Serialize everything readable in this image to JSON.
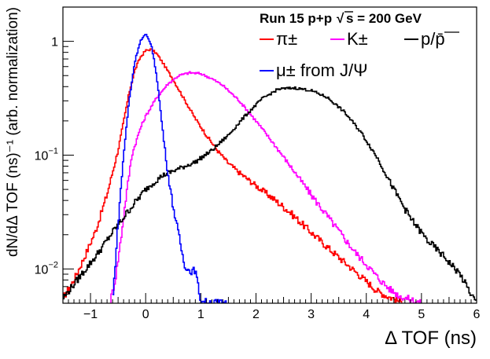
{
  "chart_data": {
    "type": "line",
    "title": "",
    "xlabel": "Δ TOF (ns)",
    "ylabel": "dN/dΔ TOF (ns)⁻¹ (arb. normalization)",
    "xlim": [
      -1.5,
      6
    ],
    "ylim": [
      0.005,
      2.0
    ],
    "yscale": "log",
    "grid": false,
    "x_ticks": [
      -1,
      0,
      1,
      2,
      3,
      4,
      5,
      6
    ],
    "x_tick_labels": [
      "−1",
      "0",
      "1",
      "2",
      "3",
      "4",
      "5",
      "6"
    ],
    "y_ticks": [
      {
        "value": 1,
        "base": "1",
        "exp": ""
      },
      {
        "value": 0.1,
        "base": "10",
        "exp": "−1"
      },
      {
        "value": 0.01,
        "base": "10",
        "exp": "−2"
      }
    ],
    "annotation": {
      "run_label": "Run 15 p+p",
      "energy_label": "s = 200 GeV",
      "sqrt_symbol": "√"
    },
    "legend_placement": "top-right",
    "series": [
      {
        "name": "π±",
        "color": "#ff0000",
        "x": [
          -1.5,
          -1.3,
          -1.1,
          -0.9,
          -0.7,
          -0.5,
          -0.3,
          -0.2,
          -0.1,
          0,
          0.1,
          0.2,
          0.3,
          0.5,
          0.7,
          0.9,
          1.1,
          1.3,
          1.5,
          1.7,
          2.0,
          2.3,
          2.6,
          3.0,
          3.4,
          3.8,
          4.0,
          4.2,
          4.4,
          4.5,
          4.6,
          4.7
        ],
        "y": [
          0.0055,
          0.008,
          0.013,
          0.022,
          0.045,
          0.11,
          0.35,
          0.55,
          0.72,
          0.83,
          0.85,
          0.78,
          0.66,
          0.46,
          0.31,
          0.21,
          0.15,
          0.11,
          0.085,
          0.07,
          0.054,
          0.042,
          0.032,
          0.021,
          0.014,
          0.0095,
          0.0078,
          0.0064,
          0.0057,
          0.0055,
          0.0052,
          0.005
        ]
      },
      {
        "name": "K±",
        "color": "#ff00ff",
        "x": [
          -0.65,
          -0.55,
          -0.45,
          -0.35,
          -0.25,
          -0.1,
          0,
          0.2,
          0.4,
          0.6,
          0.8,
          1.0,
          1.2,
          1.4,
          1.7,
          2.0,
          2.3,
          2.6,
          3.0,
          3.4,
          3.8,
          4.0,
          4.2,
          4.4,
          4.6,
          4.8,
          4.9,
          5.0
        ],
        "y": [
          0.005,
          0.008,
          0.018,
          0.045,
          0.1,
          0.17,
          0.22,
          0.32,
          0.42,
          0.5,
          0.53,
          0.52,
          0.47,
          0.41,
          0.3,
          0.2,
          0.13,
          0.083,
          0.045,
          0.025,
          0.014,
          0.011,
          0.0085,
          0.0068,
          0.0058,
          0.0054,
          0.0052,
          0.005
        ]
      },
      {
        "name": "p/p̄",
        "color": "#000000",
        "x": [
          -1.5,
          -1.2,
          -0.9,
          -0.6,
          -0.3,
          0,
          0.3,
          0.6,
          0.9,
          1.2,
          1.5,
          1.8,
          2.1,
          2.4,
          2.7,
          3.0,
          3.3,
          3.6,
          3.9,
          4.2,
          4.5,
          4.8,
          5.1,
          5.4,
          5.7,
          5.9,
          6.0
        ],
        "y": [
          0.0055,
          0.0085,
          0.013,
          0.021,
          0.033,
          0.05,
          0.066,
          0.076,
          0.087,
          0.11,
          0.15,
          0.22,
          0.31,
          0.38,
          0.39,
          0.37,
          0.32,
          0.24,
          0.16,
          0.095,
          0.05,
          0.028,
          0.018,
          0.013,
          0.009,
          0.006,
          0.005
        ]
      },
      {
        "name": "μ± from J/Ψ",
        "color": "#0000ff",
        "x": [
          -0.6,
          -0.5,
          -0.4,
          -0.3,
          -0.2,
          -0.1,
          0,
          0.1,
          0.2,
          0.3,
          0.4,
          0.5,
          0.6,
          0.7,
          0.8,
          0.9,
          1.0,
          1.5
        ],
        "y": [
          0.005,
          0.025,
          0.1,
          0.3,
          0.65,
          1.0,
          1.15,
          0.95,
          0.5,
          0.18,
          0.07,
          0.035,
          0.02,
          0.011,
          0.0095,
          0.0098,
          0.0052,
          0.005
        ]
      }
    ]
  }
}
